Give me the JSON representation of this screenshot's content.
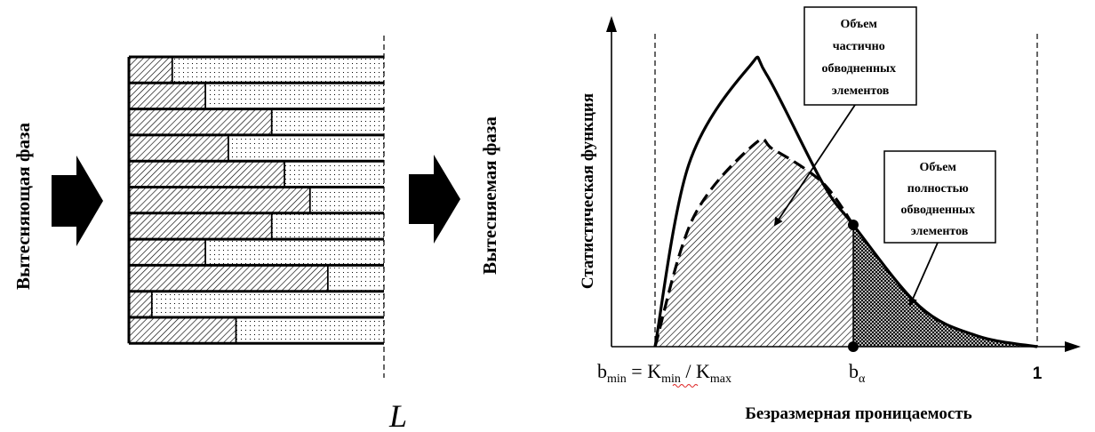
{
  "left_panel": {
    "displacing_phase_label": "Вытесняющая фаза",
    "displaced_phase_label": "Вытесняемая фаза",
    "length_label": "L",
    "channels": [
      {
        "displaced_fraction": 0.17
      },
      {
        "displaced_fraction": 0.3
      },
      {
        "displaced_fraction": 0.56
      },
      {
        "displaced_fraction": 0.39
      },
      {
        "displaced_fraction": 0.61
      },
      {
        "displaced_fraction": 0.71
      },
      {
        "displaced_fraction": 0.56
      },
      {
        "displaced_fraction": 0.3
      },
      {
        "displaced_fraction": 0.78
      },
      {
        "displaced_fraction": 0.09
      },
      {
        "displaced_fraction": 0.42
      }
    ]
  },
  "right_panel": {
    "y_axis_label": "Статистическая функция",
    "x_axis_label": "Безразмерная проницаемость",
    "x_labels": {
      "bmin_b": "b",
      "bmin_sub": "min",
      "bmin_eq": " = ",
      "kmin_k": "K",
      "kmin_sub": "min",
      "slash": " / ",
      "kmax_k": "K",
      "kmax_sub": "max",
      "balpha_b": "b",
      "balpha_sub": "α",
      "one": "1"
    },
    "callout_partial": [
      "Объем",
      "частично",
      "обводненных",
      "элементов"
    ],
    "callout_full": [
      "Объем",
      "полностью",
      "обводненных",
      "элементов"
    ],
    "colors": {
      "line": "#000000",
      "background": "#ffffff"
    }
  }
}
